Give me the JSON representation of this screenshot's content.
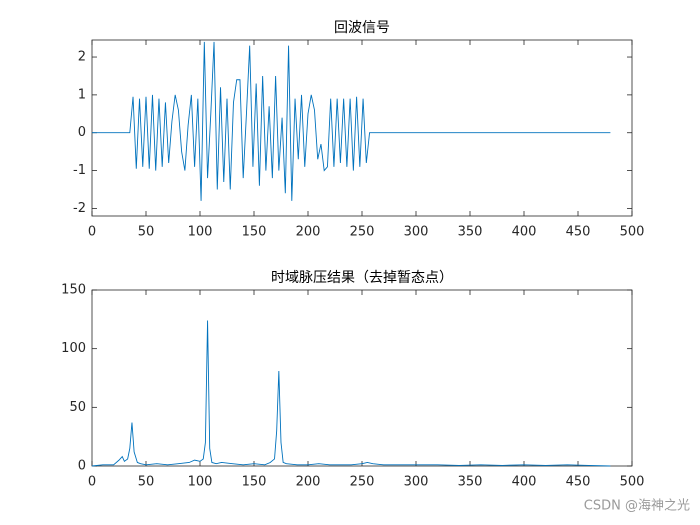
{
  "chart_data": [
    {
      "type": "line",
      "title": "回波信号",
      "x": [
        0,
        35,
        38,
        41,
        44,
        47,
        50,
        53,
        56,
        59,
        62,
        65,
        68,
        71,
        74,
        77,
        80,
        83,
        86,
        89,
        92,
        95,
        98,
        101,
        104,
        107,
        110,
        113,
        116,
        119,
        122,
        125,
        128,
        131,
        134,
        137,
        140,
        143,
        146,
        149,
        152,
        155,
        158,
        161,
        164,
        167,
        170,
        173,
        176,
        179,
        182,
        185,
        188,
        191,
        194,
        197,
        200,
        203,
        206,
        209,
        212,
        215,
        218,
        221,
        224,
        227,
        230,
        233,
        236,
        239,
        242,
        245,
        248,
        251,
        254,
        257,
        260,
        480
      ],
      "series": [
        {
          "color": "#0072BD",
          "values": [
            0,
            0,
            0.95,
            -0.95,
            0.9,
            -0.9,
            0.95,
            -0.95,
            1,
            -1,
            0.9,
            -0.9,
            0.8,
            -0.8,
            0.3,
            1,
            0.6,
            -0.5,
            -1,
            0.2,
            1,
            -0.9,
            0.9,
            -1.8,
            2.4,
            -1.2,
            0.5,
            2.4,
            -1.5,
            1.2,
            -1.3,
            0.9,
            -1.5,
            0.8,
            1.4,
            1.4,
            -1.2,
            0.5,
            2.3,
            -0.9,
            1.3,
            -1.4,
            1.5,
            -1,
            0.7,
            -1.2,
            1.5,
            -1,
            0.4,
            -1.6,
            2.3,
            -1.8,
            0.9,
            -0.7,
            1,
            -0.9,
            0.5,
            1,
            0.6,
            -0.7,
            -0.3,
            -1,
            -0.9,
            0.9,
            -0.9,
            0.9,
            -0.8,
            0.9,
            -0.9,
            0.9,
            -1,
            0.95,
            -0.9,
            0.9,
            -0.8,
            0,
            0,
            0
          ]
        }
      ],
      "xlim": [
        0,
        500
      ],
      "xticks": [
        0,
        50,
        100,
        150,
        200,
        250,
        300,
        350,
        400,
        450,
        500
      ],
      "ylim": [
        -2.2,
        2.45
      ],
      "yticks": [
        -2,
        -1,
        0,
        1,
        2
      ]
    },
    {
      "type": "line",
      "title": "时域脉压结果（去掉暂态点）",
      "x": [
        0,
        10,
        20,
        25,
        28,
        30,
        33,
        35,
        37,
        39,
        42,
        45,
        50,
        60,
        70,
        80,
        90,
        95,
        100,
        103,
        105,
        107,
        109,
        111,
        115,
        120,
        130,
        140,
        150,
        160,
        165,
        169,
        171,
        173,
        175,
        177,
        180,
        190,
        200,
        210,
        220,
        230,
        240,
        250,
        255,
        260,
        270,
        280,
        300,
        320,
        340,
        360,
        380,
        400,
        420,
        440,
        460,
        480
      ],
      "series": [
        {
          "color": "#0072BD",
          "values": [
            0,
            1,
            1,
            5,
            8,
            4,
            6,
            15,
            37,
            12,
            3,
            2,
            1,
            2,
            1,
            2,
            3,
            5,
            4,
            6,
            20,
            124,
            15,
            3,
            2,
            3,
            2,
            1,
            2,
            1,
            3,
            6,
            30,
            81,
            20,
            3,
            2,
            1,
            1,
            2,
            1,
            1,
            1,
            2,
            3,
            2,
            1,
            1,
            1,
            1,
            0.5,
            1,
            0.5,
            1,
            0.5,
            1,
            0.5,
            0
          ]
        }
      ],
      "xlim": [
        0,
        500
      ],
      "xticks": [
        0,
        50,
        100,
        150,
        200,
        250,
        300,
        350,
        400,
        450,
        500
      ],
      "ylim": [
        0,
        150
      ],
      "yticks": [
        0,
        50,
        100,
        150
      ]
    }
  ],
  "watermark": "CSDN @海神之光"
}
